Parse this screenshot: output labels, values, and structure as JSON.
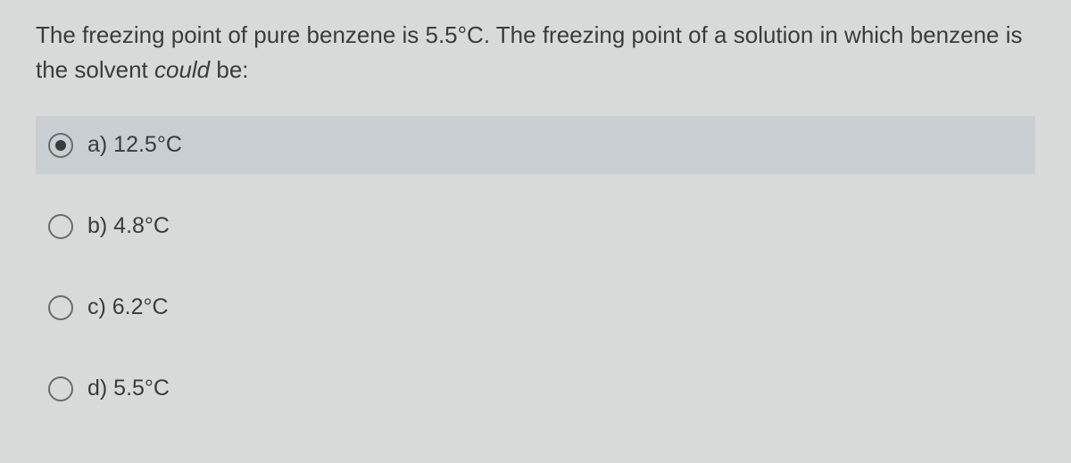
{
  "question": {
    "prefix": "The freezing point of pure benzene is 5.5°C. The freezing point of a solution in which benzene is the solvent ",
    "italic": "could",
    "suffix": " be:"
  },
  "options": [
    {
      "label": "a)  12.5°C",
      "selected": true
    },
    {
      "label": "b) 4.8°C",
      "selected": false
    },
    {
      "label": "c) 6.2°C",
      "selected": false
    },
    {
      "label": "d) 5.5°C",
      "selected": false
    }
  ],
  "colors": {
    "background": "#d8dad9",
    "selected_bg": "#c8ced2",
    "text": "#3a3c3b",
    "radio_border": "#6a6c6b"
  },
  "typography": {
    "question_fontsize": 26,
    "option_fontsize": 25
  }
}
